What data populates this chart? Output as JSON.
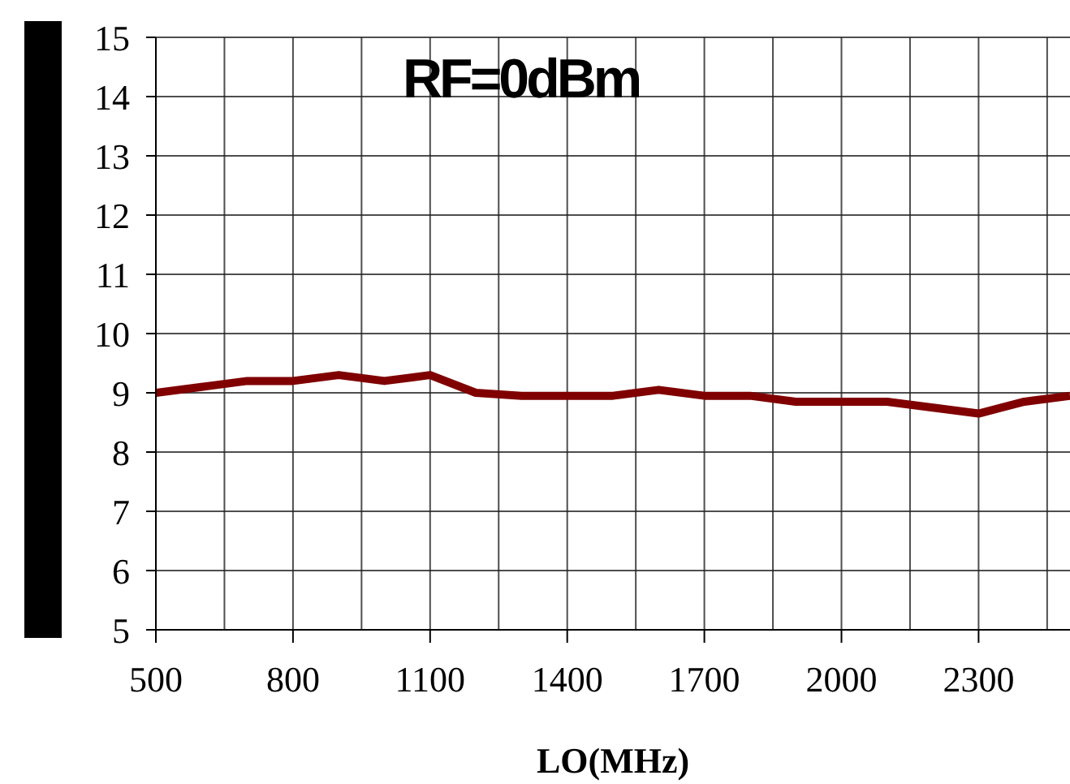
{
  "chart_data": {
    "type": "line",
    "xlabel": "LO(MHz)",
    "annotations": [
      "RF=0dBm"
    ],
    "x": [
      500,
      600,
      700,
      800,
      900,
      1000,
      1100,
      1200,
      1300,
      1400,
      1500,
      1600,
      1700,
      1800,
      1900,
      2000,
      2100,
      2200,
      2300,
      2400,
      2500
    ],
    "series": [
      {
        "color": "#800000",
        "values": [
          9.0,
          9.1,
          9.2,
          9.2,
          9.3,
          9.2,
          9.3,
          9.0,
          8.95,
          8.95,
          8.95,
          9.05,
          8.95,
          8.95,
          8.85,
          8.85,
          8.85,
          8.75,
          8.65,
          8.85,
          8.95
        ]
      }
    ],
    "xlim": [
      500,
      2500
    ],
    "xticks": [
      500,
      {
        "value": 650,
        "label": null
      },
      800,
      {
        "value": 950,
        "label": null
      },
      1100,
      {
        "value": 1250,
        "label": null
      },
      1400,
      {
        "value": 1550,
        "label": null
      },
      1700,
      {
        "value": 1850,
        "label": null
      },
      2000,
      {
        "value": 2150,
        "label": null
      },
      2300,
      {
        "value": 2450,
        "label": null
      }
    ],
    "ylim": [
      5,
      15
    ],
    "yticks": [
      5,
      6,
      7,
      8,
      9,
      10,
      11,
      12,
      13,
      14,
      15
    ],
    "grid": true,
    "marker": "none",
    "line_style": "solid"
  }
}
